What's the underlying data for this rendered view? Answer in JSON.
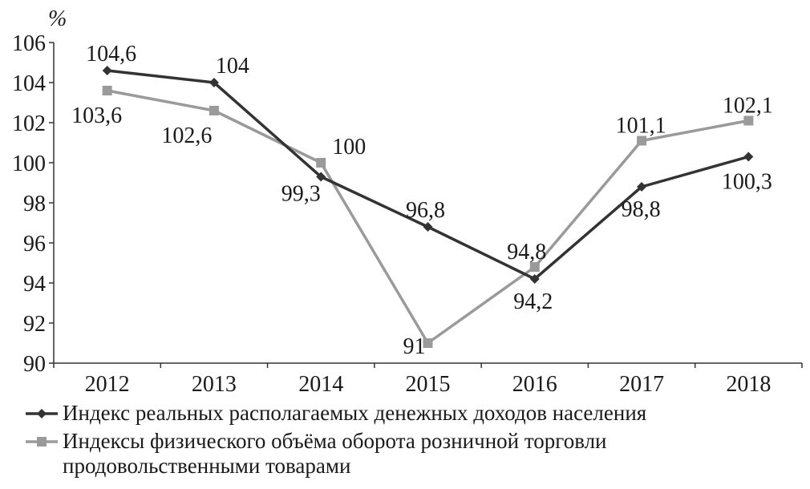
{
  "chart_data": {
    "type": "line",
    "unit": "%",
    "categories": [
      "2012",
      "2013",
      "2014",
      "2015",
      "2016",
      "2017",
      "2018"
    ],
    "ylim": [
      90,
      106
    ],
    "yticks": [
      "90",
      "92",
      "94",
      "96",
      "98",
      "100",
      "102",
      "104",
      "106"
    ],
    "grid": false,
    "legend_position": "bottom",
    "series": [
      {
        "name": "Индекс реальных располагаемых денежных доходов населения",
        "values": [
          104.6,
          104,
          99.3,
          96.8,
          94.2,
          98.8,
          100.3
        ],
        "labels": [
          "104,6",
          "104",
          "99,3",
          "96,8",
          "94,2",
          "98,8",
          "100,3"
        ],
        "marker": "diamond",
        "color": "#333333"
      },
      {
        "name": "Индексы физического объёма оборота розничной торговли продовольственными товарами",
        "name_lines": [
          "Индексы физического объёма оборота розничной торговли",
          "продовольственными товарами"
        ],
        "values": [
          103.6,
          102.6,
          100,
          91,
          94.8,
          101.1,
          102.1
        ],
        "labels": [
          "103,6",
          "102,6",
          "100",
          "91",
          "94,8",
          "101,1",
          "102,1"
        ],
        "marker": "square",
        "color": "#9a9a9a"
      }
    ]
  }
}
